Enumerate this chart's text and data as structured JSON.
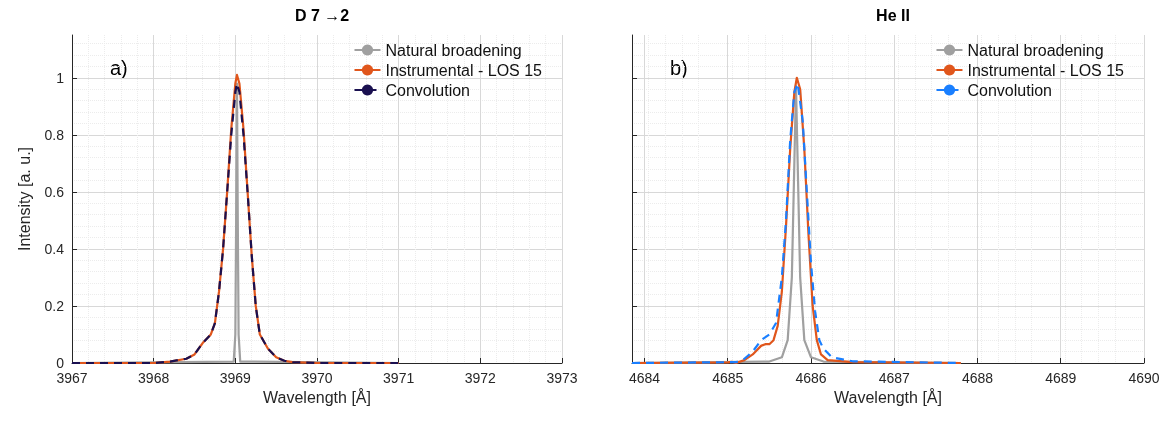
{
  "chart_data": [
    {
      "type": "line",
      "title": "D 7 →2",
      "xlabel": "Wavelength [Å]",
      "ylabel": "Intensity [a. u.]",
      "annotations": [
        "a)"
      ],
      "xlim": [
        3967,
        3973
      ],
      "xticks": [
        3967,
        3968,
        3969,
        3970,
        3971,
        3972,
        3973
      ],
      "ylim": [
        0,
        1.15
      ],
      "yticks": [
        0,
        0.2,
        0.4,
        0.6,
        0.8,
        1
      ],
      "grid": true,
      "legend": "top right",
      "marker": "none",
      "series": [
        {
          "name": "Natural broadening",
          "color": "#a0a0a0",
          "line_style": "solid",
          "x": [
            3967,
            3968.98,
            3969.0,
            3969.01,
            3969.02,
            3969.03,
            3969.04,
            3969.06,
            3971
          ],
          "values": [
            0,
            0.005,
            0.1,
            0.5,
            0.98,
            0.5,
            0.1,
            0.005,
            0
          ]
        },
        {
          "name": "Instrumental - LOS 15",
          "color": "#e0561c",
          "line_style": "solid",
          "x": [
            3967,
            3968,
            3968.2,
            3968.4,
            3968.5,
            3968.6,
            3968.7,
            3968.75,
            3968.8,
            3968.85,
            3968.9,
            3968.95,
            3969.0,
            3969.02,
            3969.05,
            3969.1,
            3969.15,
            3969.2,
            3969.25,
            3969.3,
            3969.4,
            3969.5,
            3969.6,
            3969.7,
            3970,
            3971
          ],
          "values": [
            0,
            0,
            0.005,
            0.015,
            0.03,
            0.07,
            0.1,
            0.14,
            0.25,
            0.4,
            0.6,
            0.82,
            0.98,
            1.01,
            0.98,
            0.82,
            0.6,
            0.38,
            0.2,
            0.1,
            0.05,
            0.02,
            0.008,
            0.003,
            0,
            0
          ]
        },
        {
          "name": "Convolution",
          "color": "#1a1050",
          "line_style": "dashed",
          "x": [
            3967,
            3968,
            3968.2,
            3968.4,
            3968.5,
            3968.6,
            3968.7,
            3968.75,
            3968.8,
            3968.85,
            3968.9,
            3968.95,
            3969.0,
            3969.02,
            3969.05,
            3969.1,
            3969.15,
            3969.2,
            3969.25,
            3969.3,
            3969.4,
            3969.5,
            3969.6,
            3969.7,
            3970,
            3971
          ],
          "values": [
            0,
            0,
            0.005,
            0.015,
            0.03,
            0.07,
            0.1,
            0.14,
            0.25,
            0.4,
            0.6,
            0.8,
            0.95,
            0.98,
            0.95,
            0.8,
            0.6,
            0.38,
            0.2,
            0.1,
            0.05,
            0.02,
            0.008,
            0.003,
            0,
            0
          ]
        }
      ]
    },
    {
      "type": "line",
      "title": "He II",
      "xlabel": "Wavelength [Å]",
      "annotations": [
        "b)"
      ],
      "xlim": [
        4683.85,
        4690
      ],
      "xticks": [
        4684,
        4685,
        4686,
        4687,
        4688,
        4689,
        4690
      ],
      "ylim": [
        0,
        1.15
      ],
      "yticks": [
        0,
        0.2,
        0.4,
        0.6,
        0.8,
        1
      ],
      "tick_labels": "x",
      "grid": true,
      "legend": "top right",
      "marker": "none",
      "series": [
        {
          "name": "Natural broadening",
          "color": "#a0a0a0",
          "line_style": "solid",
          "x": [
            4683.85,
            4685.5,
            4685.65,
            4685.72,
            4685.77,
            4685.8,
            4685.82,
            4685.84,
            4685.87,
            4685.92,
            4686.0,
            4686.15,
            4687.8
          ],
          "values": [
            0,
            0.005,
            0.02,
            0.08,
            0.3,
            0.7,
            0.97,
            0.7,
            0.3,
            0.08,
            0.02,
            0.005,
            0
          ]
        },
        {
          "name": "Instrumental - LOS 15",
          "color": "#e0561c",
          "line_style": "solid",
          "x": [
            4683.85,
            4685.0,
            4685.05,
            4685.1,
            4685.2,
            4685.3,
            4685.4,
            4685.45,
            4685.5,
            4685.55,
            4685.6,
            4685.65,
            4685.7,
            4685.75,
            4685.8,
            4685.83,
            4685.87,
            4685.92,
            4685.97,
            4686.02,
            4686.07,
            4686.12,
            4686.2,
            4686.5,
            4687.8
          ],
          "values": [
            0,
            0.002,
            0.004,
            0,
            0.01,
            0.03,
            0.06,
            0.066,
            0.066,
            0.08,
            0.13,
            0.25,
            0.48,
            0.75,
            0.95,
            1.0,
            0.96,
            0.75,
            0.45,
            0.2,
            0.08,
            0.03,
            0.01,
            0.003,
            0
          ]
        },
        {
          "name": "Convolution",
          "color": "#1a7fff",
          "line_style": "dashed",
          "x": [
            4683.85,
            4685.1,
            4685.2,
            4685.3,
            4685.4,
            4685.5,
            4685.58,
            4685.65,
            4685.7,
            4685.75,
            4685.8,
            4685.84,
            4685.9,
            4685.95,
            4686.0,
            4686.05,
            4686.1,
            4686.15,
            4686.25,
            4686.5,
            4687.8
          ],
          "values": [
            0,
            0.003,
            0.015,
            0.04,
            0.08,
            0.1,
            0.14,
            0.3,
            0.5,
            0.78,
            0.95,
            0.98,
            0.85,
            0.6,
            0.35,
            0.18,
            0.08,
            0.05,
            0.02,
            0.006,
            0
          ]
        }
      ]
    }
  ]
}
